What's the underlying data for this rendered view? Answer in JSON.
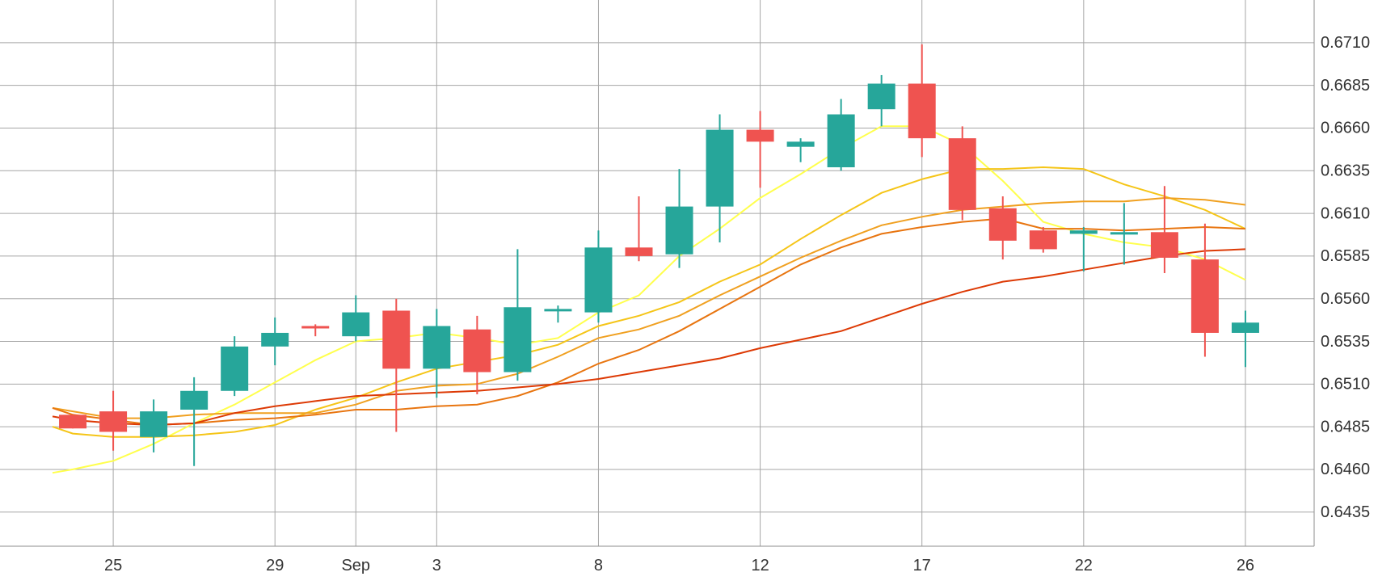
{
  "chart_data": {
    "type": "candlestick",
    "y_axis": {
      "ticks": [
        "0.6710",
        "0.6685",
        "0.6660",
        "0.6635",
        "0.6610",
        "0.6585",
        "0.6560",
        "0.6535",
        "0.6510",
        "0.6485",
        "0.6460",
        "0.6435"
      ],
      "ylim": [
        0.6415,
        0.6735
      ],
      "position": "right"
    },
    "x_axis": {
      "ticks": [
        {
          "label": "25",
          "slot": 1
        },
        {
          "label": "29",
          "slot": 5
        },
        {
          "label": "Sep",
          "slot": 7
        },
        {
          "label": "3",
          "slot": 9
        },
        {
          "label": "8",
          "slot": 13
        },
        {
          "label": "12",
          "slot": 17
        },
        {
          "label": "17",
          "slot": 21
        },
        {
          "label": "22",
          "slot": 25
        },
        {
          "label": "26",
          "slot": 29
        }
      ],
      "slot_range": [
        -1.8,
        30.7
      ]
    },
    "grid": true,
    "colors": {
      "up": "#26a69a",
      "down": "#ef5350"
    },
    "candles": [
      {
        "slot": 0,
        "open": 0.6492,
        "high": 0.6492,
        "low": 0.6484,
        "close": 0.6484
      },
      {
        "slot": 1,
        "open": 0.6494,
        "high": 0.6506,
        "low": 0.6471,
        "close": 0.6482
      },
      {
        "slot": 2,
        "open": 0.6479,
        "high": 0.6501,
        "low": 0.647,
        "close": 0.6494
      },
      {
        "slot": 3,
        "open": 0.6495,
        "high": 0.6514,
        "low": 0.6462,
        "close": 0.6506
      },
      {
        "slot": 4,
        "open": 0.6506,
        "high": 0.6538,
        "low": 0.6503,
        "close": 0.6532
      },
      {
        "slot": 5,
        "open": 0.6532,
        "high": 0.6549,
        "low": 0.6521,
        "close": 0.654
      },
      {
        "slot": 6,
        "open": 0.6544,
        "high": 0.6545,
        "low": 0.6538,
        "close": 0.6543
      },
      {
        "slot": 7,
        "open": 0.6538,
        "high": 0.6562,
        "low": 0.6535,
        "close": 0.6552
      },
      {
        "slot": 8,
        "open": 0.6553,
        "high": 0.656,
        "low": 0.6482,
        "close": 0.6519
      },
      {
        "slot": 9,
        "open": 0.6519,
        "high": 0.6554,
        "low": 0.6502,
        "close": 0.6544
      },
      {
        "slot": 10,
        "open": 0.6542,
        "high": 0.655,
        "low": 0.6504,
        "close": 0.6517
      },
      {
        "slot": 11,
        "open": 0.6517,
        "high": 0.6589,
        "low": 0.6512,
        "close": 0.6555
      },
      {
        "slot": 12,
        "open": 0.6554,
        "high": 0.6556,
        "low": 0.6546,
        "close": 0.6554
      },
      {
        "slot": 13,
        "open": 0.6552,
        "high": 0.66,
        "low": 0.6546,
        "close": 0.659
      },
      {
        "slot": 14,
        "open": 0.659,
        "high": 0.662,
        "low": 0.6582,
        "close": 0.6585
      },
      {
        "slot": 15,
        "open": 0.6586,
        "high": 0.6636,
        "low": 0.6578,
        "close": 0.6614
      },
      {
        "slot": 16,
        "open": 0.6614,
        "high": 0.6668,
        "low": 0.6593,
        "close": 0.6659
      },
      {
        "slot": 17,
        "open": 0.6659,
        "high": 0.667,
        "low": 0.6625,
        "close": 0.6652
      },
      {
        "slot": 18,
        "open": 0.6649,
        "high": 0.6654,
        "low": 0.664,
        "close": 0.6652
      },
      {
        "slot": 19,
        "open": 0.6637,
        "high": 0.6677,
        "low": 0.6635,
        "close": 0.6668
      },
      {
        "slot": 20,
        "open": 0.6671,
        "high": 0.6691,
        "low": 0.6661,
        "close": 0.6686
      },
      {
        "slot": 21,
        "open": 0.6686,
        "high": 0.6709,
        "low": 0.6643,
        "close": 0.6654
      },
      {
        "slot": 22,
        "open": 0.6654,
        "high": 0.6661,
        "low": 0.6606,
        "close": 0.6612
      },
      {
        "slot": 23,
        "open": 0.6613,
        "high": 0.662,
        "low": 0.6583,
        "close": 0.6594
      },
      {
        "slot": 24,
        "open": 0.66,
        "high": 0.6602,
        "low": 0.6587,
        "close": 0.6589
      },
      {
        "slot": 25,
        "open": 0.6598,
        "high": 0.6602,
        "low": 0.6576,
        "close": 0.66
      },
      {
        "slot": 26,
        "open": 0.6598,
        "high": 0.6616,
        "low": 0.658,
        "close": 0.6599
      },
      {
        "slot": 27,
        "open": 0.6599,
        "high": 0.6626,
        "low": 0.6575,
        "close": 0.6584
      },
      {
        "slot": 28,
        "open": 0.6583,
        "high": 0.6604,
        "low": 0.6526,
        "close": 0.654
      },
      {
        "slot": 29,
        "open": 0.654,
        "high": 0.6553,
        "low": 0.652,
        "close": 0.6546
      }
    ],
    "series": [
      {
        "color": "#ffff4d",
        "points": [
          [
            -0.5,
            0.6458
          ],
          [
            0,
            0.646
          ],
          [
            1,
            0.6465
          ],
          [
            2,
            0.6475
          ],
          [
            3,
            0.6487
          ],
          [
            4,
            0.6498
          ],
          [
            5,
            0.6511
          ],
          [
            6,
            0.6524
          ],
          [
            7,
            0.6535
          ],
          [
            8,
            0.6537
          ],
          [
            9,
            0.654
          ],
          [
            10,
            0.6537
          ],
          [
            11,
            0.6533
          ],
          [
            12,
            0.6537
          ],
          [
            13,
            0.6552
          ],
          [
            14,
            0.6562
          ],
          [
            15,
            0.6585
          ],
          [
            16,
            0.6601
          ],
          [
            17,
            0.6619
          ],
          [
            18,
            0.6633
          ],
          [
            19,
            0.6648
          ],
          [
            20,
            0.6661
          ],
          [
            21,
            0.6661
          ],
          [
            22,
            0.665
          ],
          [
            23,
            0.6629
          ],
          [
            24,
            0.6605
          ],
          [
            25,
            0.6598
          ],
          [
            26,
            0.6593
          ],
          [
            27,
            0.659
          ],
          [
            28,
            0.6583
          ],
          [
            29,
            0.6571
          ]
        ]
      },
      {
        "color": "#f5c518",
        "points": [
          [
            -0.5,
            0.6485
          ],
          [
            0,
            0.6481
          ],
          [
            1,
            0.6479
          ],
          [
            2,
            0.6479
          ],
          [
            3,
            0.648
          ],
          [
            4,
            0.6482
          ],
          [
            5,
            0.6486
          ],
          [
            6,
            0.6495
          ],
          [
            7,
            0.6502
          ],
          [
            8,
            0.6511
          ],
          [
            9,
            0.6519
          ],
          [
            10,
            0.6523
          ],
          [
            11,
            0.6527
          ],
          [
            12,
            0.6533
          ],
          [
            13,
            0.6544
          ],
          [
            14,
            0.655
          ],
          [
            15,
            0.6558
          ],
          [
            16,
            0.657
          ],
          [
            17,
            0.658
          ],
          [
            18,
            0.6595
          ],
          [
            19,
            0.6609
          ],
          [
            20,
            0.6622
          ],
          [
            21,
            0.663
          ],
          [
            22,
            0.6636
          ],
          [
            23,
            0.6636
          ],
          [
            24,
            0.6637
          ],
          [
            25,
            0.6636
          ],
          [
            26,
            0.6627
          ],
          [
            27,
            0.662
          ],
          [
            28,
            0.6612
          ],
          [
            29,
            0.6601
          ]
        ]
      },
      {
        "color": "#f0a020",
        "points": [
          [
            -0.5,
            0.6496
          ],
          [
            0,
            0.6494
          ],
          [
            1,
            0.649
          ],
          [
            2,
            0.649
          ],
          [
            3,
            0.6492
          ],
          [
            4,
            0.6493
          ],
          [
            5,
            0.6493
          ],
          [
            6,
            0.6493
          ],
          [
            7,
            0.6498
          ],
          [
            8,
            0.6506
          ],
          [
            9,
            0.6509
          ],
          [
            10,
            0.651
          ],
          [
            11,
            0.6516
          ],
          [
            12,
            0.6526
          ],
          [
            13,
            0.6537
          ],
          [
            14,
            0.6542
          ],
          [
            15,
            0.655
          ],
          [
            16,
            0.6562
          ],
          [
            17,
            0.6573
          ],
          [
            18,
            0.6584
          ],
          [
            19,
            0.6594
          ],
          [
            20,
            0.6603
          ],
          [
            21,
            0.6608
          ],
          [
            22,
            0.6612
          ],
          [
            23,
            0.6614
          ],
          [
            24,
            0.6616
          ],
          [
            25,
            0.6617
          ],
          [
            26,
            0.6617
          ],
          [
            27,
            0.6619
          ],
          [
            28,
            0.6618
          ],
          [
            29,
            0.6615
          ]
        ]
      },
      {
        "color": "#e87510",
        "points": [
          [
            -0.5,
            0.6496
          ],
          [
            0,
            0.6492
          ],
          [
            1,
            0.6489
          ],
          [
            2,
            0.6486
          ],
          [
            3,
            0.6487
          ],
          [
            4,
            0.6489
          ],
          [
            5,
            0.649
          ],
          [
            6,
            0.6492
          ],
          [
            7,
            0.6495
          ],
          [
            8,
            0.6495
          ],
          [
            9,
            0.6497
          ],
          [
            10,
            0.6498
          ],
          [
            11,
            0.6503
          ],
          [
            12,
            0.6511
          ],
          [
            13,
            0.6522
          ],
          [
            14,
            0.653
          ],
          [
            15,
            0.6541
          ],
          [
            16,
            0.6554
          ],
          [
            17,
            0.6567
          ],
          [
            18,
            0.658
          ],
          [
            19,
            0.659
          ],
          [
            20,
            0.6598
          ],
          [
            21,
            0.6602
          ],
          [
            22,
            0.6605
          ],
          [
            23,
            0.6607
          ],
          [
            24,
            0.6601
          ],
          [
            25,
            0.6601
          ],
          [
            26,
            0.66
          ],
          [
            27,
            0.6601
          ],
          [
            28,
            0.6602
          ],
          [
            29,
            0.6601
          ]
        ]
      },
      {
        "color": "#dd3a05",
        "points": [
          [
            -0.5,
            0.6491
          ],
          [
            0,
            0.6489
          ],
          [
            1,
            0.6487
          ],
          [
            2,
            0.6486
          ],
          [
            3,
            0.6487
          ],
          [
            4,
            0.6493
          ],
          [
            5,
            0.6497
          ],
          [
            6,
            0.65
          ],
          [
            7,
            0.6503
          ],
          [
            8,
            0.6504
          ],
          [
            9,
            0.6505
          ],
          [
            10,
            0.6506
          ],
          [
            11,
            0.6508
          ],
          [
            12,
            0.651
          ],
          [
            13,
            0.6513
          ],
          [
            14,
            0.6517
          ],
          [
            15,
            0.6521
          ],
          [
            16,
            0.6525
          ],
          [
            17,
            0.6531
          ],
          [
            18,
            0.6536
          ],
          [
            19,
            0.6541
          ],
          [
            20,
            0.6549
          ],
          [
            21,
            0.6557
          ],
          [
            22,
            0.6564
          ],
          [
            23,
            0.657
          ],
          [
            24,
            0.6573
          ],
          [
            25,
            0.6577
          ],
          [
            26,
            0.6581
          ],
          [
            27,
            0.6585
          ],
          [
            28,
            0.6588
          ],
          [
            29,
            0.6589
          ]
        ]
      }
    ]
  }
}
